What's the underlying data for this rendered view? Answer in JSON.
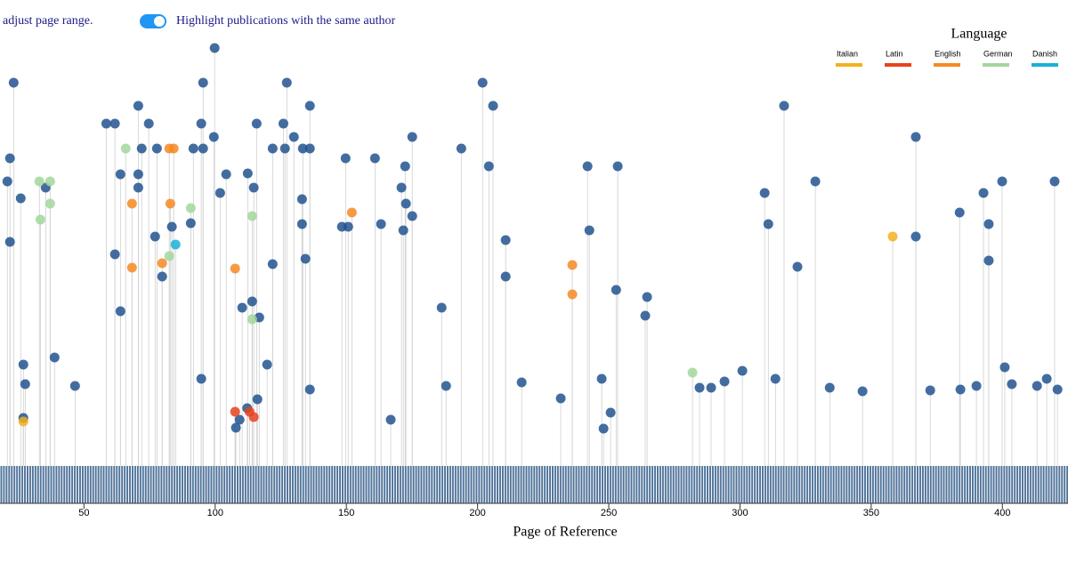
{
  "controls": {
    "range_hint": "adjust page range.",
    "toggle_label": "Highlight publications with the same author",
    "toggle_on": true
  },
  "chart_data": {
    "type": "scatter",
    "x_label": "Page of Reference",
    "xlim": [
      18,
      425
    ],
    "xticks": [
      50,
      100,
      150,
      200,
      250,
      300,
      350,
      400
    ],
    "ylim": [
      0,
      100
    ],
    "legend_title": "Language",
    "legend_position": "top-right",
    "series": [
      {
        "name": "Italian",
        "color": "#f2b01e",
        "x": [
          358.2,
          26.9
        ],
        "y": [
          50.8,
          9.2
        ]
      },
      {
        "name": "Latin",
        "color": "#e8421e",
        "x": [
          107.6,
          114.7,
          113.1
        ],
        "y": [
          11.4,
          10.2,
          11.4
        ]
      },
      {
        "name": "English",
        "color": "#f58a22",
        "x": [
          68.3,
          68.3,
          82.9,
          79.8,
          82.5,
          84.2,
          107.6,
          152.1,
          236.1,
          236.1
        ],
        "y": [
          58.2,
          43.8,
          58.2,
          44.8,
          70.6,
          70.6,
          43.6,
          56.2,
          44.4,
          37.8
        ]
      },
      {
        "name": "German",
        "color": "#a3d69c",
        "x": [
          65.9,
          33,
          37.1,
          37.1,
          33.4,
          90.7,
          114.1,
          82.5,
          281.9,
          114.1
        ],
        "y": [
          70.6,
          63.2,
          63.2,
          58.2,
          54.6,
          57.2,
          55.4,
          46.4,
          20.2,
          32.2
        ]
      },
      {
        "name": "Danish",
        "color": "#1ab0d8",
        "x": [
          84.9
        ],
        "y": [
          49
        ]
      }
    ],
    "other_points": {
      "color": "#22548f",
      "x": [
        23.2,
        99.8,
        95.4,
        127.3,
        136.1,
        70.7,
        58.5,
        61.8,
        74.7,
        94.7,
        115.8,
        126,
        175.1,
        201.9,
        205.9,
        316.8,
        367,
        193.8,
        149.7,
        160.9,
        172.4,
        204.3,
        241.9,
        253.4,
        328.7,
        309.4,
        399.9,
        419.9,
        392.8,
        383.7,
        394.8,
        394.8,
        310.8,
        367,
        321.9,
        242.6,
        210.7,
        210.7,
        252.8,
        264.6,
        263.9,
        186.3,
        163.2,
        148.3,
        150.7,
        171.7,
        172.7,
        175.1,
        171,
        133.1,
        133.1,
        134.4,
        121.9,
        119.8,
        136.1,
        94.7,
        46.6,
        38.8,
        26.9,
        27.6,
        21.8,
        20.8,
        21.8,
        25.9,
        35.4,
        63.9,
        70.7,
        70.7,
        77.1,
        61.8,
        63.9,
        79.8,
        83.5,
        90.7,
        110.3,
        114.1,
        116.8,
        104.2,
        112.4,
        114.7,
        188,
        216.8,
        231.7,
        247.3,
        250.7,
        248,
        300.9,
        284.6,
        289,
        294.1,
        313.5,
        334.2,
        346.7,
        372.5,
        384,
        390.1,
        400.9,
        403.6,
        413.2,
        416.9,
        421,
        166.9,
        107.9,
        109.3,
        112.2,
        116.1,
        26.9,
        99.5,
        101.9,
        130,
        121.9,
        126.6,
        133.4,
        136.1,
        72,
        77.8,
        95.4,
        91.7
      ],
      "y": [
        85.4,
        93.2,
        85.4,
        85.4,
        80.2,
        80.2,
        76.2,
        76.2,
        76.2,
        76.2,
        76.2,
        76.2,
        73.2,
        85.4,
        80.2,
        80.2,
        73.2,
        70.6,
        68.4,
        68.4,
        66.6,
        66.6,
        66.6,
        66.6,
        63.2,
        60.6,
        63.2,
        63.2,
        60.6,
        56.2,
        53.6,
        45.4,
        53.6,
        50.8,
        44,
        52.2,
        50,
        41.8,
        38.8,
        37.2,
        33,
        34.8,
        53.6,
        53,
        53,
        52.2,
        58.2,
        55.4,
        61.8,
        59.2,
        53.6,
        45.8,
        44.6,
        22,
        16.4,
        18.8,
        17.2,
        23.6,
        22,
        17.6,
        49.6,
        63.2,
        68.4,
        59.4,
        61.8,
        64.8,
        64.8,
        61.8,
        50.8,
        46.8,
        34,
        41.8,
        53,
        53.8,
        34.8,
        36.2,
        32.6,
        64.8,
        65,
        61.8,
        17.2,
        18,
        14.4,
        18.8,
        11.2,
        7.6,
        20.6,
        16.8,
        16.8,
        18.2,
        18.8,
        16.8,
        16,
        16.2,
        16.4,
        17.2,
        21.4,
        17.6,
        17.2,
        18.8,
        16.4,
        9.6,
        7.8,
        9.6,
        12.2,
        14.2,
        10,
        73.2,
        60.6,
        73.2,
        70.6,
        70.6,
        70.6,
        70.6,
        70.6,
        70.6,
        70.6,
        70.6
      ]
    }
  }
}
